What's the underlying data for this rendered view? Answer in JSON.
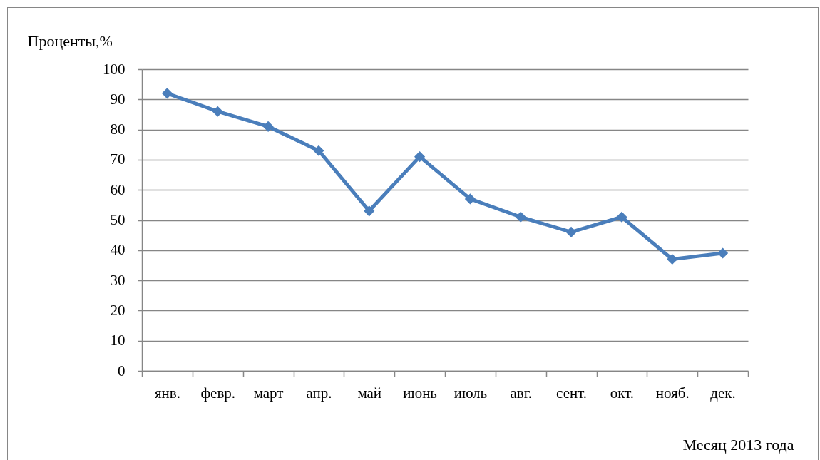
{
  "chart_data": {
    "type": "line",
    "ylabel": "Проценты,%",
    "xlabel": "Месяц 2013 года",
    "categories": [
      "янв.",
      "февр.",
      "март",
      "апр.",
      "май",
      "июнь",
      "июль",
      "авг.",
      "сент.",
      "окт.",
      "нояб.",
      "дек."
    ],
    "values": [
      92,
      86,
      81,
      73,
      53,
      71,
      57,
      51,
      46,
      51,
      37,
      39
    ],
    "color": "#4a7ebb",
    "ylim": [
      0,
      100
    ],
    "yticks": [
      0,
      10,
      20,
      30,
      40,
      50,
      60,
      70,
      80,
      90,
      100
    ],
    "grid": "y",
    "marker": "diamond",
    "line_style": "solid"
  }
}
